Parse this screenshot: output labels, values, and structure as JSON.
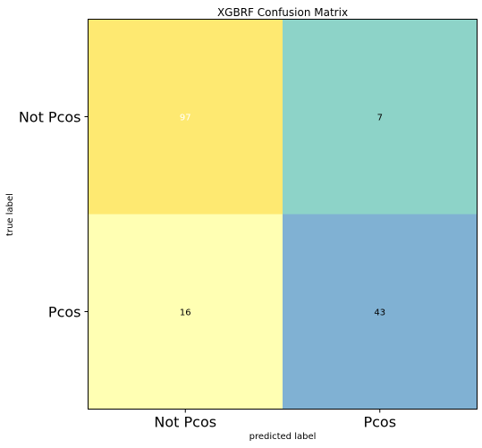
{
  "chart_data": {
    "type": "heatmap",
    "title": "XGBRF Confusion Matrix",
    "xlabel": "predicted label",
    "ylabel": "true label",
    "x_categories": [
      "Not Pcos",
      "Pcos"
    ],
    "y_categories": [
      "Not Pcos",
      "Pcos"
    ],
    "values": [
      [
        97,
        7
      ],
      [
        16,
        43
      ]
    ],
    "cell_colors": [
      [
        "#fee971",
        "#8dd3c8"
      ],
      [
        "#ffffb3",
        "#80b1d3"
      ]
    ],
    "cell_text_colors": [
      [
        "#ffffff",
        "#000000"
      ],
      [
        "#000000",
        "#000000"
      ]
    ],
    "grid": false
  }
}
